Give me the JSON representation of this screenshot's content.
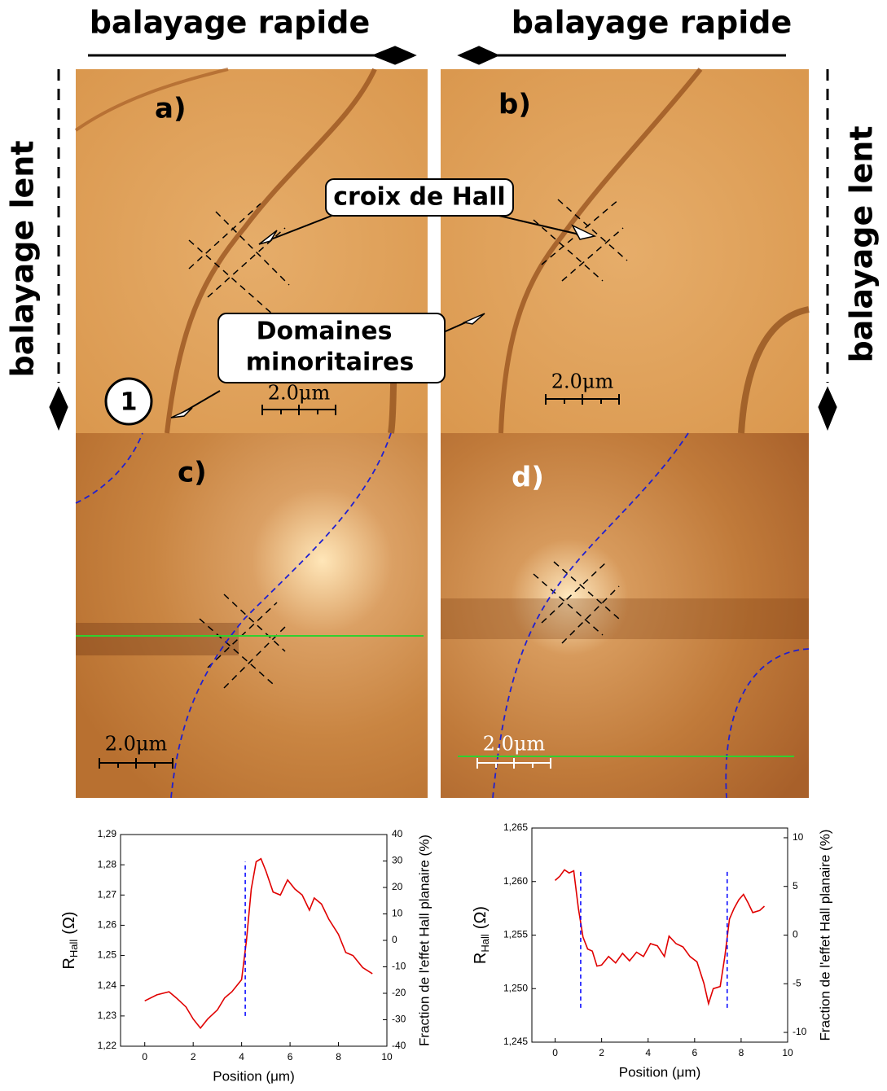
{
  "labels": {
    "fast_scan": [
      "balayage rapide",
      "balayage rapide"
    ],
    "slow_scan": [
      "balayage lent",
      "balayage lent"
    ],
    "panels": [
      "a)",
      "b)",
      "c)",
      "d)"
    ],
    "hall_cross": "croix de Hall",
    "minority_domains": [
      "Domaines",
      "minoritaires"
    ],
    "marker": "1",
    "scale_bars": [
      "2.0μm",
      "2.0μm",
      "2.0μm",
      "2.0μm"
    ]
  },
  "chart_data": [
    {
      "type": "line",
      "xlabel": "Position (μm)",
      "ylabel": "R",
      "ylabel_sub": "Hall",
      "ylabel_unit": "(Ω)",
      "y2label": "Fraction de l'effet Hall planaire (%)",
      "xlim": [
        -1,
        10
      ],
      "xticks": [
        0,
        2,
        4,
        6,
        8,
        10
      ],
      "ylim": [
        1.22,
        1.29
      ],
      "yticks": [
        {
          "value": 1.22,
          "label": "1,22"
        },
        {
          "value": 1.23,
          "label": "1,23"
        },
        {
          "value": 1.24,
          "label": "1,24"
        },
        {
          "value": 1.25,
          "label": "1,25"
        },
        {
          "value": 1.26,
          "label": "1,26"
        },
        {
          "value": 1.27,
          "label": "1,27"
        },
        {
          "value": 1.28,
          "label": "1,28"
        },
        {
          "value": 1.29,
          "label": "1,29"
        }
      ],
      "y2lim": [
        -40,
        40
      ],
      "y2ticks": [
        -40,
        -30,
        -20,
        -10,
        0,
        10,
        20,
        30,
        40
      ],
      "x": [
        0,
        0.5,
        1,
        1.3,
        1.7,
        2,
        2.3,
        2.6,
        3,
        3.3,
        3.6,
        4,
        4.2,
        4.4,
        4.6,
        4.8,
        5,
        5.3,
        5.6,
        5.9,
        6.2,
        6.5,
        6.8,
        7,
        7.3,
        7.6,
        8,
        8.3,
        8.6,
        9,
        9.4
      ],
      "series": [
        {
          "color": "#e00000",
          "values": [
            1.235,
            1.237,
            1.238,
            1.236,
            1.233,
            1.229,
            1.226,
            1.229,
            1.232,
            1.236,
            1.238,
            1.242,
            1.255,
            1.272,
            1.281,
            1.282,
            1.278,
            1.271,
            1.27,
            1.275,
            1.272,
            1.27,
            1.265,
            1.269,
            1.267,
            1.262,
            1.257,
            1.251,
            1.25,
            1.246,
            1.244
          ]
        }
      ],
      "vlines": {
        "x": [
          4.15
        ],
        "y": [
          1.23,
          1.281
        ],
        "color": "#0000ff"
      }
    },
    {
      "type": "line",
      "xlabel": "Position (μm)",
      "ylabel": "R",
      "ylabel_sub": "Hall",
      "ylabel_unit": "(Ω)",
      "y2label": "Fraction de l'effet Hall planaire (%)",
      "xlim": [
        -1,
        10
      ],
      "xticks": [
        0,
        2,
        4,
        6,
        8,
        10
      ],
      "ylim": [
        1.245,
        1.265
      ],
      "yticks": [
        {
          "value": 1.245,
          "label": "1,245"
        },
        {
          "value": 1.25,
          "label": "1,250"
        },
        {
          "value": 1.255,
          "label": "1,255"
        },
        {
          "value": 1.26,
          "label": "1,260"
        },
        {
          "value": 1.265,
          "label": "1,265"
        }
      ],
      "y2lim": [
        -11,
        11
      ],
      "y2ticks": [
        -10,
        -5,
        0,
        5,
        10
      ],
      "x": [
        0,
        0.2,
        0.4,
        0.6,
        0.8,
        1.0,
        1.2,
        1.4,
        1.6,
        1.8,
        2,
        2.3,
        2.6,
        2.9,
        3.2,
        3.5,
        3.8,
        4.1,
        4.4,
        4.7,
        4.9,
        5.2,
        5.5,
        5.8,
        6.1,
        6.4,
        6.6,
        6.8,
        7.1,
        7.3,
        7.5,
        7.7,
        7.9,
        8.1,
        8.3,
        8.5,
        8.8,
        9.0
      ],
      "series": [
        {
          "color": "#e00000",
          "values": [
            1.2601,
            1.2605,
            1.2611,
            1.2608,
            1.261,
            1.2575,
            1.2548,
            1.2537,
            1.2535,
            1.2521,
            1.2522,
            1.253,
            1.2524,
            1.2533,
            1.2526,
            1.2534,
            1.253,
            1.2542,
            1.254,
            1.253,
            1.2549,
            1.2542,
            1.2539,
            1.253,
            1.2525,
            1.2505,
            1.2486,
            1.25,
            1.2502,
            1.253,
            1.2565,
            1.2575,
            1.2583,
            1.2588,
            1.258,
            1.2571,
            1.2573,
            1.2577
          ]
        }
      ],
      "vlines": {
        "x": [
          1.1,
          7.4
        ],
        "y": [
          1.2482,
          1.261
        ],
        "color": "#0000ff"
      }
    }
  ]
}
